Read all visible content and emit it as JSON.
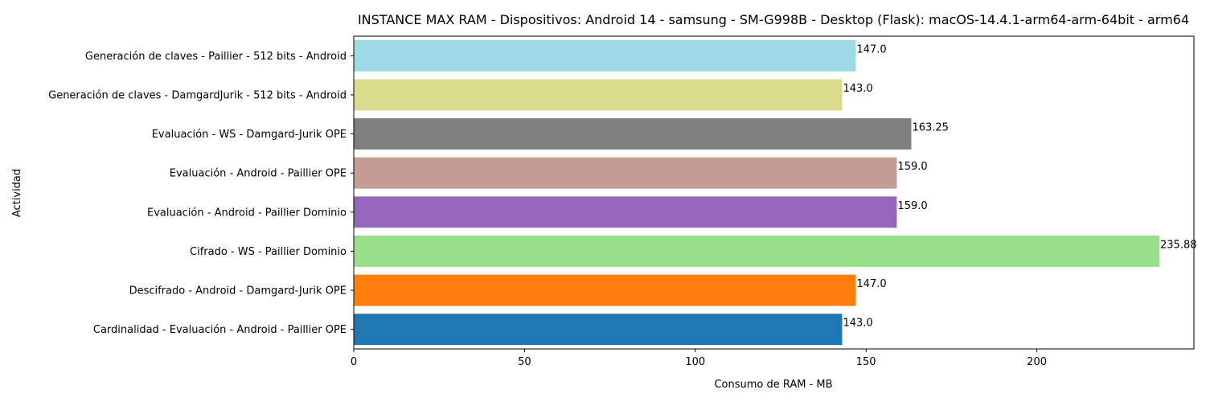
{
  "chart_data": {
    "type": "bar",
    "orientation": "horizontal",
    "title": "INSTANCE MAX RAM - Dispositivos: Android 14 - samsung - SM-G998B - Desktop (Flask): macOS-14.4.1-arm64-arm-64bit - arm64",
    "xlabel": "Consumo de RAM - MB",
    "ylabel": "Actividad",
    "xlim": [
      0,
      246
    ],
    "x_ticks": [
      0,
      50,
      100,
      150,
      200
    ],
    "grid": false,
    "categories": [
      "Cardinalidad - Evaluación - Android - Paillier OPE",
      "Descifrado - Android - Damgard-Jurik OPE",
      "Cifrado - WS - Paillier Dominio",
      "Evaluación - Android - Paillier Dominio",
      "Evaluación - Android - Paillier OPE",
      "Evaluación - WS - Damgard-Jurik OPE",
      "Generación de claves - DamgardJurik - 512 bits - Android",
      "Generación de claves - Paillier - 512 bits - Android"
    ],
    "values": [
      143.0,
      147.0,
      235.88,
      159.0,
      159.0,
      163.25,
      143.0,
      147.0
    ],
    "value_labels": [
      "143.0",
      "147.0",
      "235.88",
      "159.0",
      "159.0",
      "163.25",
      "143.0",
      "147.0"
    ],
    "colors": [
      "#1f77b4",
      "#ff7f0e",
      "#98df8a",
      "#9467bd",
      "#c49c94",
      "#7f7f7f",
      "#dbdb8d",
      "#9edae5"
    ]
  }
}
